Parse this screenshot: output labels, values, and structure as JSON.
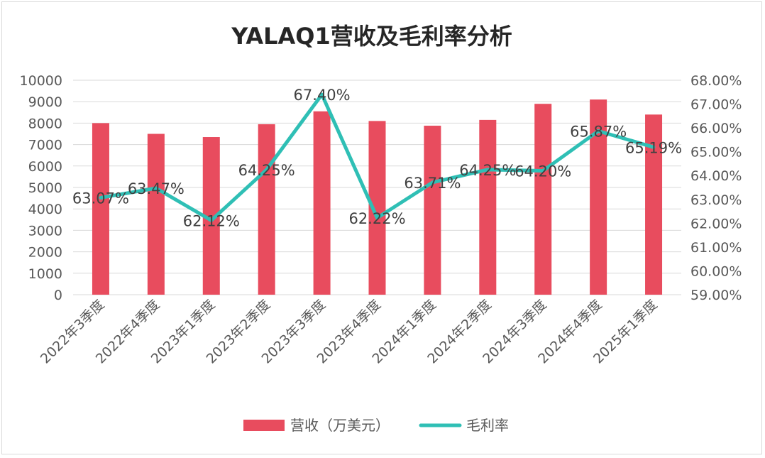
{
  "chart_data": {
    "type": "bar",
    "title": "YALAQ1营收及毛利率分析",
    "categories": [
      "2022年3季度",
      "2022年4季度",
      "2023年1季度",
      "2023年2季度",
      "2023年3季度",
      "2023年4季度",
      "2024年1季度",
      "2024年2季度",
      "2024年3季度",
      "2024年4季度",
      "2025年1季度"
    ],
    "series": [
      {
        "name": "营收（万美元）",
        "type": "bar",
        "axis": "left",
        "color": "#e84c5e",
        "values": [
          8000,
          7500,
          7350,
          7950,
          8550,
          8100,
          7880,
          8150,
          8900,
          9100,
          8400
        ]
      },
      {
        "name": "毛利率",
        "type": "line",
        "axis": "right",
        "color": "#2fbfb5",
        "values": [
          63.07,
          63.47,
          62.12,
          64.25,
          67.4,
          62.22,
          63.71,
          64.25,
          64.2,
          65.87,
          65.19
        ],
        "labels": [
          "63.07%",
          "63.47%",
          "62.12%",
          "64.25%",
          "67.40%",
          "62.22%",
          "63.71%",
          "64.25%",
          "64.20%",
          "65.87%",
          "65.19%"
        ]
      }
    ],
    "y_left": {
      "min": 0,
      "max": 10000,
      "step": 1000,
      "ticks": [
        "0",
        "1000",
        "2000",
        "3000",
        "4000",
        "5000",
        "6000",
        "7000",
        "8000",
        "9000",
        "10000"
      ]
    },
    "y_right": {
      "min": 59,
      "max": 68,
      "step": 1,
      "ticks": [
        "59.00%",
        "60.00%",
        "61.00%",
        "62.00%",
        "63.00%",
        "64.00%",
        "65.00%",
        "66.00%",
        "67.00%",
        "68.00%"
      ]
    },
    "grid": true,
    "legend_position": "bottom"
  }
}
